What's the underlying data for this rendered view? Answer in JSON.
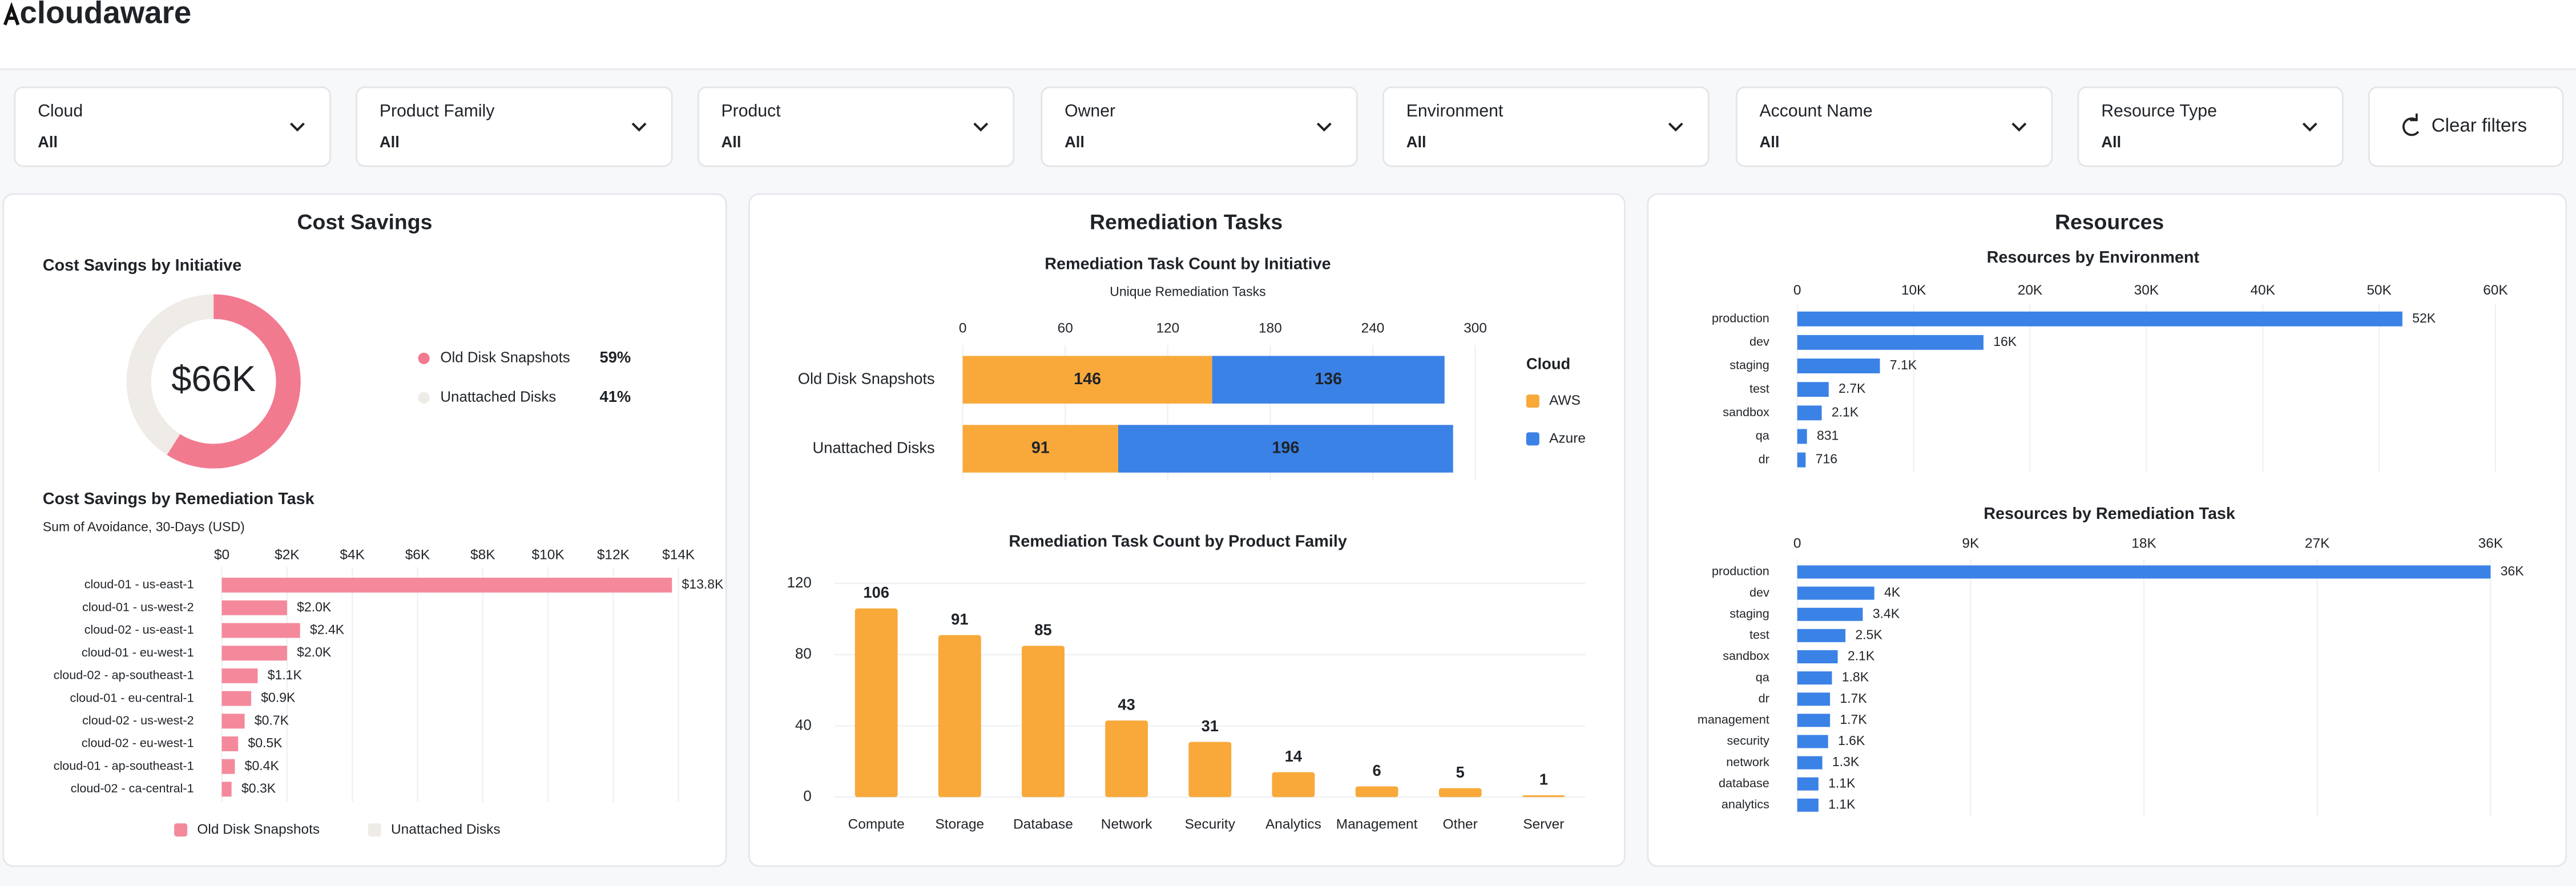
{
  "header": {
    "logo": "cloudaware"
  },
  "filters": [
    {
      "label": "Cloud",
      "value": "All"
    },
    {
      "label": "Product Family",
      "value": "All"
    },
    {
      "label": "Product",
      "value": "All"
    },
    {
      "label": "Owner",
      "value": "All"
    },
    {
      "label": "Environment",
      "value": "All"
    },
    {
      "label": "Account Name",
      "value": "All"
    },
    {
      "label": "Resource Type",
      "value": "All"
    }
  ],
  "clear_filters": "Clear filters",
  "panels": [
    "Cost Savings",
    "Remediation Tasks",
    "Resources"
  ],
  "chart_data": [
    {
      "type": "donut",
      "title": "Cost Savings by Initiative",
      "center_label": "$66K",
      "categories": [
        "Old Disk Snapshots",
        "Unattached Disks"
      ],
      "values": [
        59,
        41
      ],
      "value_labels": [
        "59%",
        "41%"
      ],
      "colors": [
        "#f27a8f",
        "#efebe6"
      ]
    },
    {
      "type": "barh",
      "title": "Cost Savings by Remediation Task",
      "subtitle": "Sum of Avoidance, 30-Days (USD)",
      "categories": [
        "cloud-01 - us-east-1",
        "cloud-01 - us-west-2",
        "cloud-02 - us-east-1",
        "cloud-01 - eu-west-1",
        "cloud-02 - ap-southeast-1",
        "cloud-01 - eu-central-1",
        "cloud-02 - us-west-2",
        "cloud-02 - eu-west-1",
        "cloud-01 - ap-southeast-1",
        "cloud-02 - ca-central-1"
      ],
      "series": [
        {
          "name": "Old Disk Snapshots",
          "color": "#f4899b",
          "values": [
            13800,
            2000,
            2400,
            2000,
            1100,
            900,
            700,
            500,
            400,
            300
          ]
        },
        {
          "name": "Unattached Disks",
          "color": "#efebe6"
        }
      ],
      "value_labels": [
        "$13.8K",
        "$2.0K",
        "$2.4K",
        "$2.0K",
        "$1.1K",
        "$0.9K",
        "$0.7K",
        "$0.5K",
        "$0.4K",
        "$0.3K"
      ],
      "xlim": [
        0,
        14000
      ],
      "xticks": [
        {
          "value": 0,
          "label": "$0"
        },
        {
          "value": 2000,
          "label": "$2K"
        },
        {
          "value": 4000,
          "label": "$4K"
        },
        {
          "value": 6000,
          "label": "$6K"
        },
        {
          "value": 8000,
          "label": "$8K"
        },
        {
          "value": 10000,
          "label": "$10K"
        },
        {
          "value": 12000,
          "label": "$12K"
        },
        {
          "value": 14000,
          "label": "$14K"
        }
      ],
      "grid": true
    },
    {
      "type": "barh",
      "title": "Remediation Task Count by Initiative",
      "subtitle": "Unique Remediation Tasks",
      "categories": [
        "Old Disk Snapshots",
        "Unattached Disks"
      ],
      "series": [
        {
          "name": "AWS",
          "color": "#f8a93a",
          "values": [
            146,
            91
          ]
        },
        {
          "name": "Azure",
          "color": "#3b82e6",
          "values": [
            136,
            196
          ]
        }
      ],
      "legend_title": "Cloud",
      "xlim": [
        0,
        300
      ],
      "xticks": [
        0,
        60,
        120,
        180,
        240,
        300
      ],
      "grid": true
    },
    {
      "type": "bar",
      "title": "Remediation Task Count by Product Family",
      "categories": [
        "Compute",
        "Storage",
        "Database",
        "Network",
        "Security",
        "Analytics",
        "Management",
        "Other",
        "Server"
      ],
      "values": [
        106,
        91,
        85,
        43,
        31,
        14,
        6,
        5,
        1
      ],
      "color": "#f8a93a",
      "ylim": [
        0,
        120
      ],
      "yticks": [
        0,
        40,
        80,
        120
      ],
      "grid": true
    },
    {
      "type": "barh",
      "title": "Resources by Environment",
      "categories": [
        "production",
        "dev",
        "staging",
        "test",
        "sandbox",
        "qa",
        "dr"
      ],
      "values": [
        52000,
        16000,
        7100,
        2700,
        2100,
        831,
        716
      ],
      "color": "#3b82e6",
      "value_labels": [
        "52K",
        "16K",
        "7.1K",
        "2.7K",
        "2.1K",
        "831",
        "716"
      ],
      "xlim": [
        0,
        60000
      ],
      "xticks": [
        0,
        {
          "value": 10000,
          "label": "10K"
        },
        {
          "value": 20000,
          "label": "20K"
        },
        {
          "value": 30000,
          "label": "30K"
        },
        {
          "value": 40000,
          "label": "40K"
        },
        {
          "value": 50000,
          "label": "50K"
        },
        {
          "value": 60000,
          "label": "60K"
        }
      ],
      "grid": true
    },
    {
      "type": "barh",
      "title": "Resources by Remediation Task",
      "categories": [
        "production",
        "dev",
        "staging",
        "test",
        "sandbox",
        "qa",
        "dr",
        "management",
        "security",
        "network",
        "database",
        "analytics"
      ],
      "values": [
        36000,
        4000,
        3400,
        2500,
        2100,
        1800,
        1700,
        1700,
        1600,
        1300,
        1100,
        1100
      ],
      "color": "#3b82e6",
      "value_labels": [
        "36K",
        "4K",
        "3.4K",
        "2.5K",
        "2.1K",
        "1.8K",
        "1.7K",
        "1.7K",
        "1.6K",
        "1.3K",
        "1.1K",
        "1.1K"
      ],
      "xlim": [
        0,
        36000
      ],
      "xticks": [
        0,
        {
          "value": 9000,
          "label": "9K"
        },
        {
          "value": 18000,
          "label": "18K"
        },
        {
          "value": 27000,
          "label": "27K"
        },
        {
          "value": 36000,
          "label": "36K"
        }
      ],
      "grid": true
    }
  ]
}
